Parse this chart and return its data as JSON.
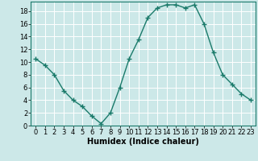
{
  "x": [
    0,
    1,
    2,
    3,
    4,
    5,
    6,
    7,
    8,
    9,
    10,
    11,
    12,
    13,
    14,
    15,
    16,
    17,
    18,
    19,
    20,
    21,
    22,
    23
  ],
  "y": [
    10.5,
    9.5,
    8.0,
    5.5,
    4.0,
    3.0,
    1.5,
    0.3,
    2.0,
    6.0,
    10.5,
    13.5,
    17.0,
    18.5,
    19.0,
    19.0,
    18.5,
    19.0,
    16.0,
    11.5,
    8.0,
    6.5,
    5.0,
    4.0
  ],
  "line_color": "#1a7a6a",
  "marker": "+",
  "marker_size": 4,
  "linewidth": 1.0,
  "xlabel": "Humidex (Indice chaleur)",
  "xlabel_fontsize": 7,
  "xlabel_fontweight": "bold",
  "xlim": [
    -0.5,
    23.5
  ],
  "ylim": [
    0,
    19.5
  ],
  "yticks": [
    0,
    2,
    4,
    6,
    8,
    10,
    12,
    14,
    16,
    18
  ],
  "xticks": [
    0,
    1,
    2,
    3,
    4,
    5,
    6,
    7,
    8,
    9,
    10,
    11,
    12,
    13,
    14,
    15,
    16,
    17,
    18,
    19,
    20,
    21,
    22,
    23
  ],
  "background_color": "#cce8e8",
  "grid_color": "#ffffff",
  "tick_fontsize": 6,
  "spine_color": "#1a7a6a"
}
